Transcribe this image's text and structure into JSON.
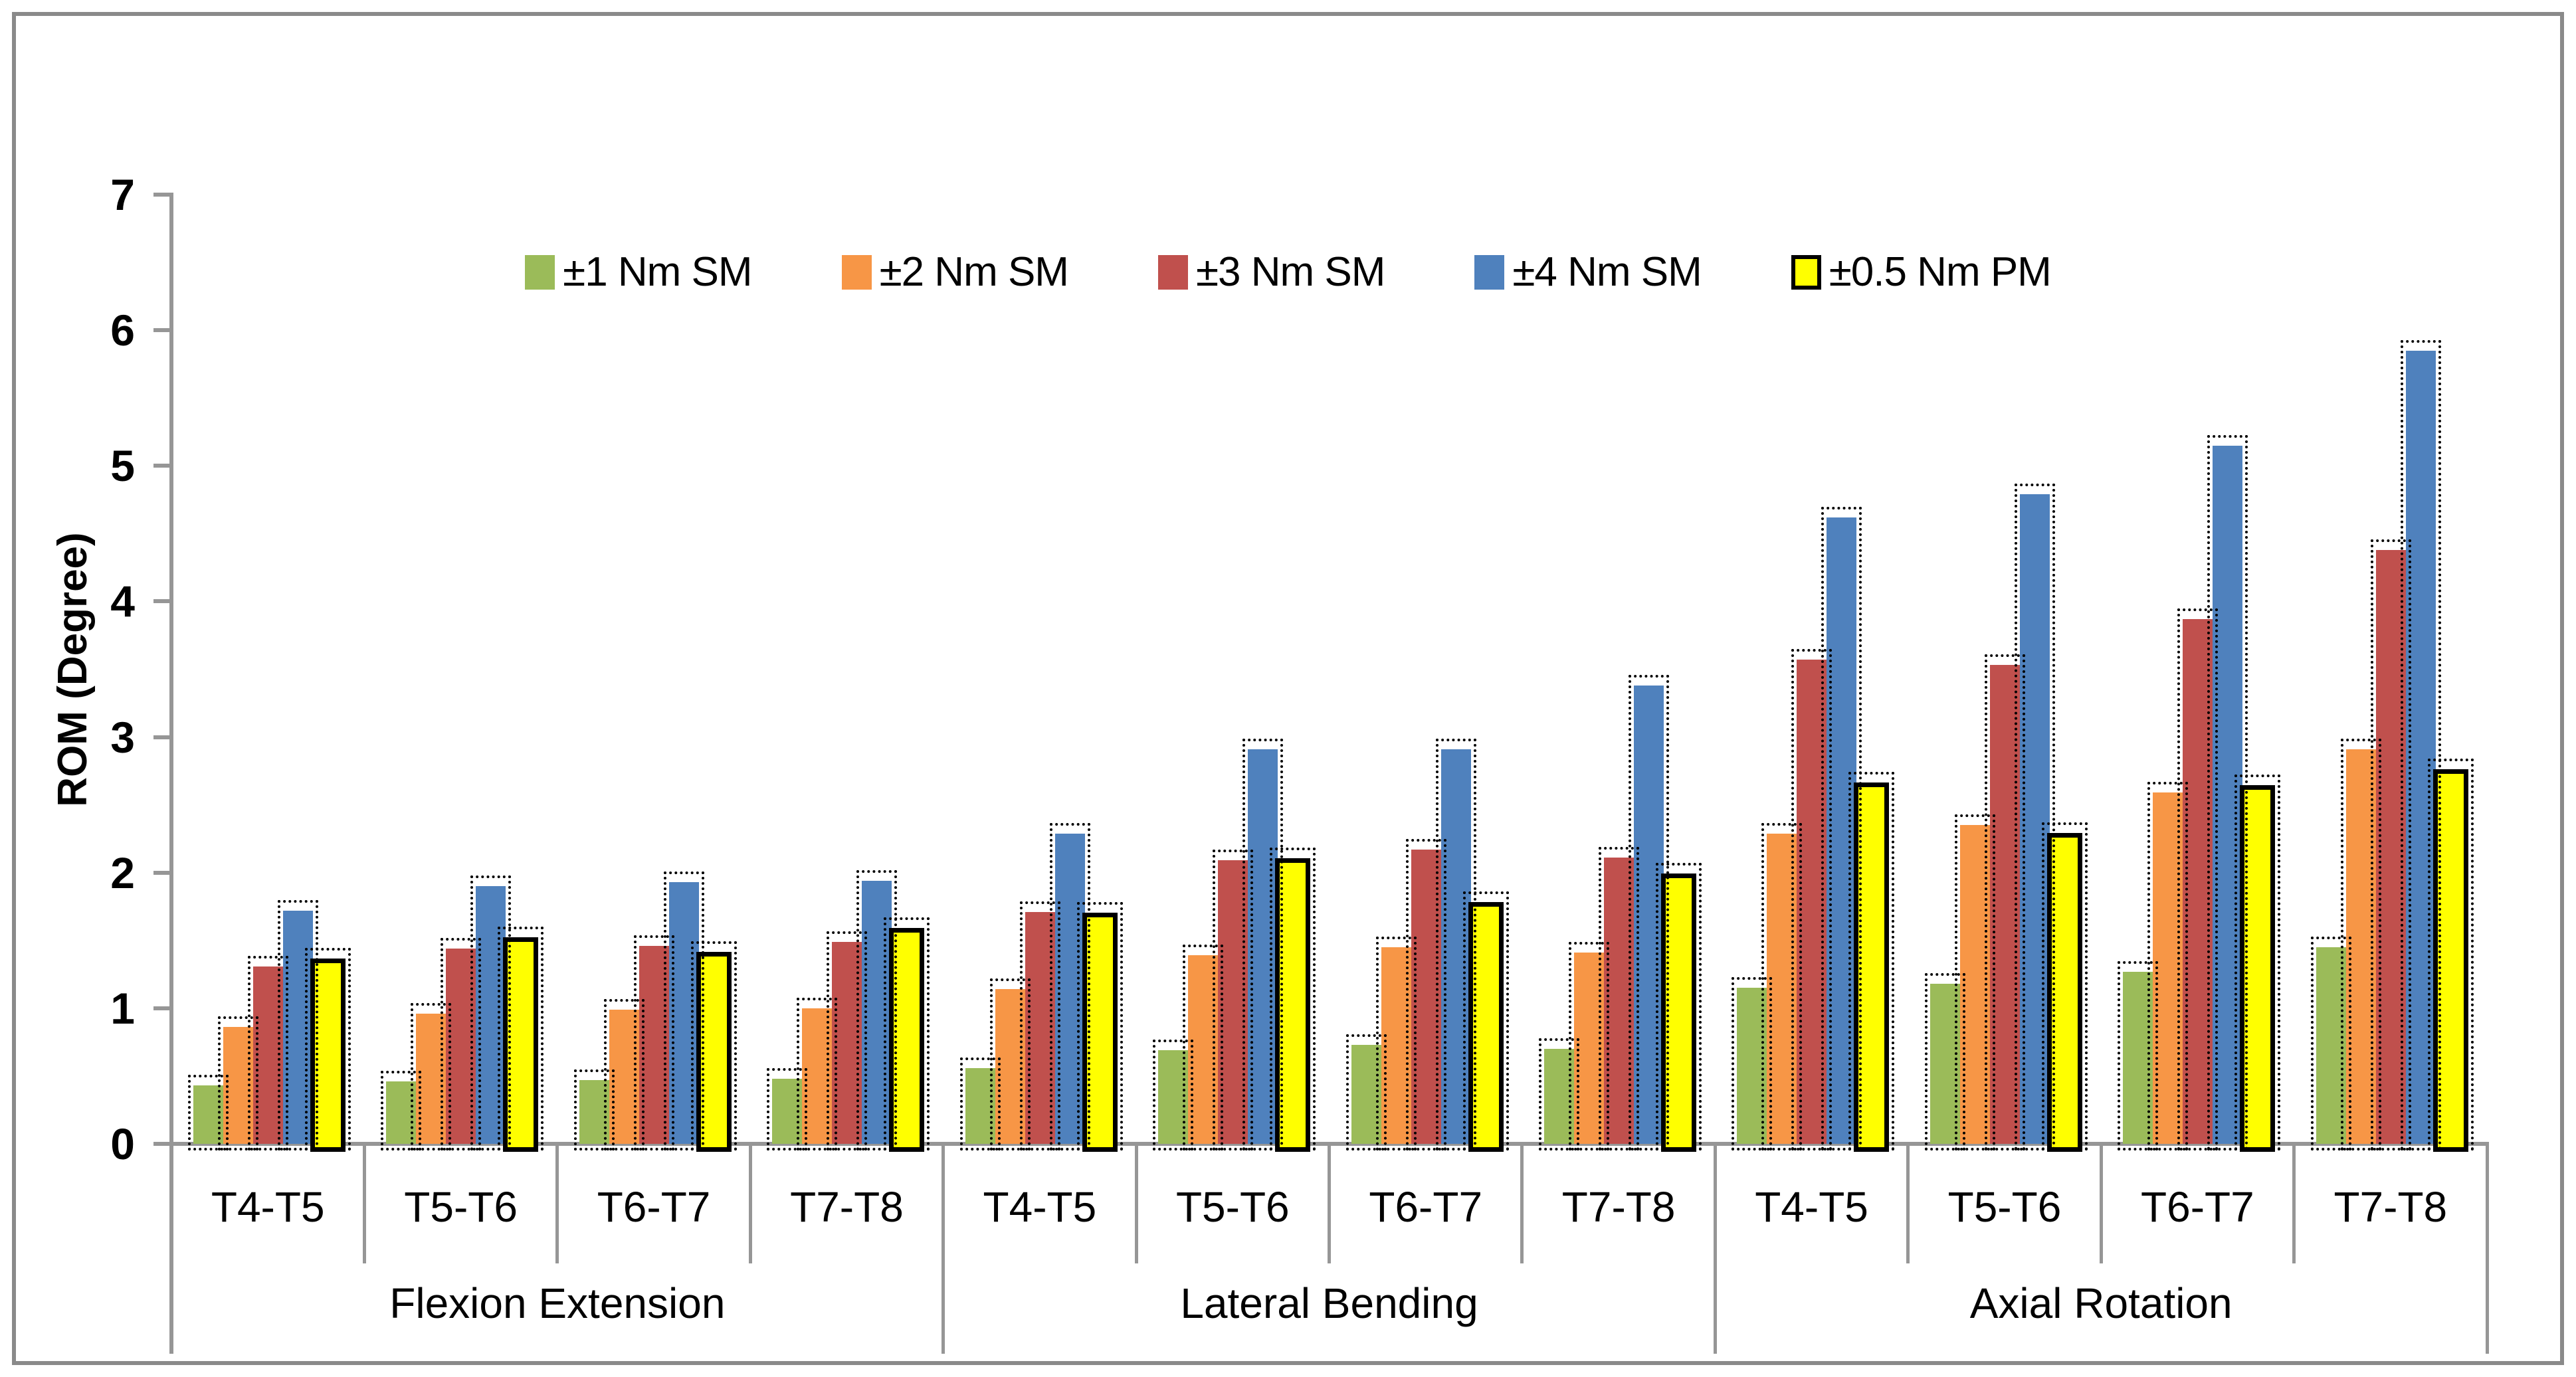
{
  "window": {
    "background": "#ffffff",
    "frame_border_color": "#8a8a8a"
  },
  "axis": {
    "line_color": "#969696",
    "text_color": "#000000"
  },
  "chart_data": {
    "type": "bar",
    "title": "",
    "xlabel": "",
    "ylabel": "ROM (Degree)",
    "ylim": [
      0,
      7
    ],
    "yticks": [
      0,
      1,
      2,
      3,
      4,
      5,
      6,
      7
    ],
    "grid": false,
    "legend_position": "top-center",
    "groups": [
      "Flexion Extension",
      "Lateral Bending",
      "Axial Rotation"
    ],
    "categories": [
      "T4-T5",
      "T5-T6",
      "T6-T7",
      "T7-T8"
    ],
    "series": [
      {
        "name": "±1 Nm SM",
        "color": "#9BBB59",
        "values": [
          [
            0.43,
            0.46,
            0.47,
            0.48
          ],
          [
            0.56,
            0.69,
            0.73,
            0.7
          ],
          [
            1.15,
            1.18,
            1.27,
            1.45
          ]
        ]
      },
      {
        "name": "±2 Nm SM",
        "color": "#F79646",
        "values": [
          [
            0.86,
            0.96,
            0.99,
            1.0
          ],
          [
            1.14,
            1.39,
            1.45,
            1.41
          ],
          [
            2.29,
            2.35,
            2.59,
            2.91
          ]
        ]
      },
      {
        "name": "±3 Nm SM",
        "color": "#C0504D",
        "values": [
          [
            1.31,
            1.44,
            1.46,
            1.49
          ],
          [
            1.71,
            2.09,
            2.17,
            2.11
          ],
          [
            3.57,
            3.53,
            3.87,
            4.38
          ]
        ]
      },
      {
        "name": "±4 Nm SM",
        "color": "#4F81BD",
        "values": [
          [
            1.72,
            1.9,
            1.93,
            1.94
          ],
          [
            2.29,
            2.91,
            2.91,
            3.38
          ],
          [
            4.62,
            4.79,
            5.15,
            5.85
          ]
        ]
      },
      {
        "name": "±0.5 Nm PM",
        "color": "#FFFF00",
        "border_color": "#000000",
        "values": [
          [
            1.33,
            1.49,
            1.38,
            1.56
          ],
          [
            1.67,
            2.07,
            1.75,
            1.96
          ],
          [
            2.63,
            2.26,
            2.61,
            2.73
          ]
        ]
      }
    ]
  }
}
